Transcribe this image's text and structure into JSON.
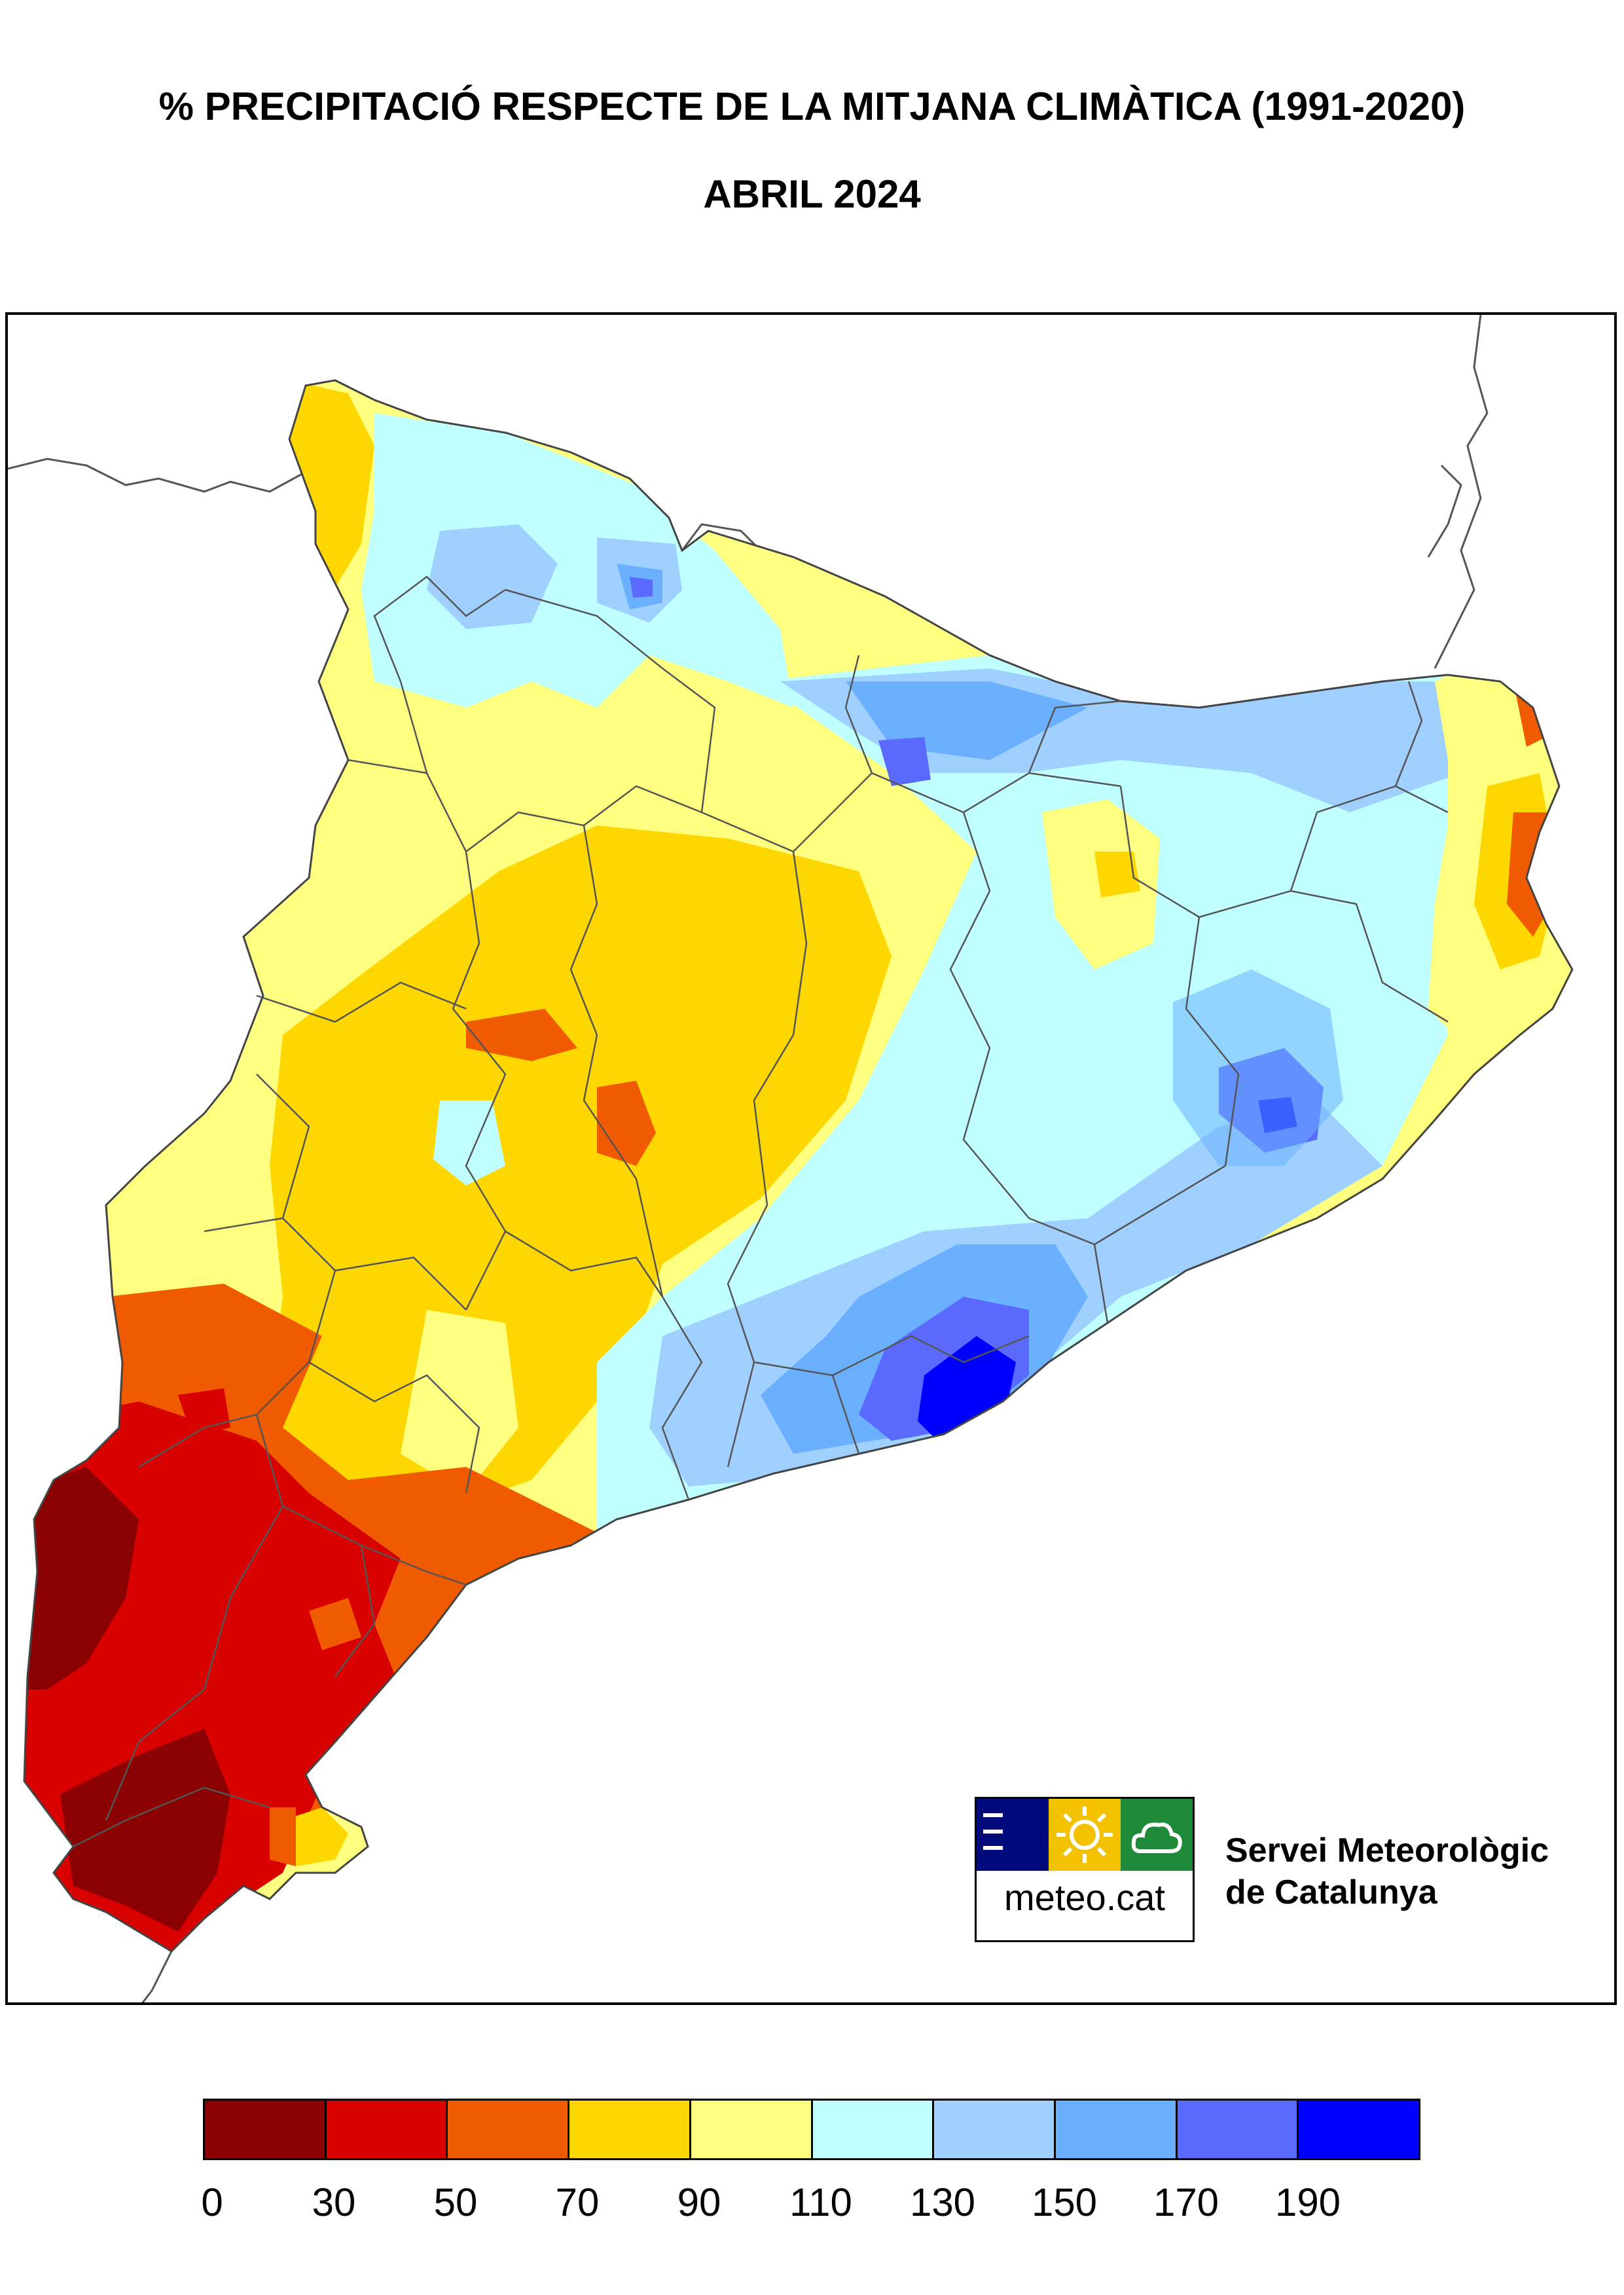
{
  "header": {
    "title": "% PRECIPITACIÓ RESPECTE DE LA MITJANA CLIMÀTICA (1991-2020)",
    "subtitle": "ABRIL 2024"
  },
  "logo": {
    "text": "meteo.cat",
    "tiles": [
      {
        "icon": "lines-icon",
        "color": "#000a7a"
      },
      {
        "icon": "sun-icon",
        "color": "#f2c200"
      },
      {
        "icon": "cloud-icon",
        "color": "#1f8a3a"
      }
    ]
  },
  "organization": {
    "line1": "Servei Meteorològic",
    "line2": "de Catalunya"
  },
  "legend": {
    "colors": [
      "#8b0000",
      "#d90000",
      "#f05a00",
      "#ffd700",
      "#ffff80",
      "#c0ffff",
      "#a0d0ff",
      "#6ab0ff",
      "#5a6aff",
      "#0000ff"
    ],
    "labels": [
      "0",
      "30",
      "50",
      "70",
      "90",
      "110",
      "130",
      "150",
      "170",
      "190"
    ]
  }
}
